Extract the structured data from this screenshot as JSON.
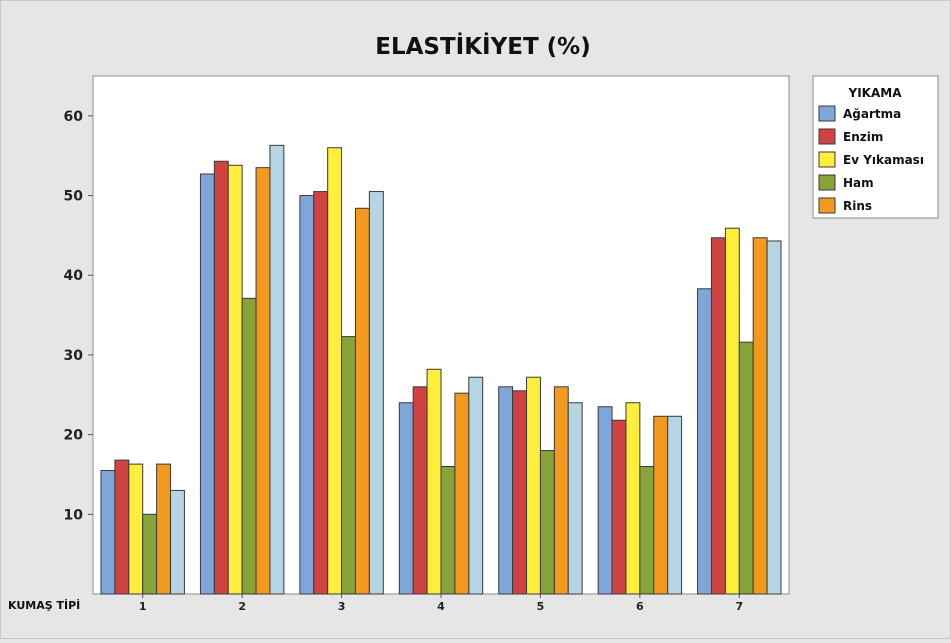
{
  "chart_data": {
    "type": "bar",
    "title": "ELASTİKİYET (%)",
    "xlabel": "KUMAŞ TİPİ",
    "ylabel": "",
    "ylim": [
      0,
      65
    ],
    "yticks": [
      10,
      20,
      30,
      40,
      50,
      60
    ],
    "grid": false,
    "legend_position": "top-right",
    "legend_title": "YIKAMA",
    "categories": [
      "1",
      "2",
      "3",
      "4",
      "5",
      "6",
      "7"
    ],
    "series": [
      {
        "name": "Ağartma",
        "color": "#7ea6d8",
        "values": [
          15.5,
          52.7,
          50.0,
          24.0,
          26.0,
          23.5,
          38.3
        ]
      },
      {
        "name": "Enzim",
        "color": "#cf4442",
        "values": [
          16.8,
          54.3,
          50.5,
          26.0,
          25.5,
          21.8,
          44.7
        ]
      },
      {
        "name": "Ev Yıkaması",
        "color": "#ffee3c",
        "values": [
          16.3,
          53.8,
          56.0,
          28.2,
          27.2,
          24.0,
          45.9
        ]
      },
      {
        "name": "Ham",
        "color": "#86a43a",
        "values": [
          10.0,
          37.1,
          32.3,
          16.0,
          18.0,
          16.0,
          31.6
        ]
      },
      {
        "name": "Rins",
        "color": "#f39a1e",
        "values": [
          16.3,
          53.5,
          48.4,
          25.2,
          26.0,
          22.3,
          44.7
        ]
      },
      {
        "color": "#b5d5e4",
        "values": [
          13.0,
          56.3,
          50.5,
          27.2,
          24.0,
          22.3,
          44.3
        ]
      }
    ]
  }
}
